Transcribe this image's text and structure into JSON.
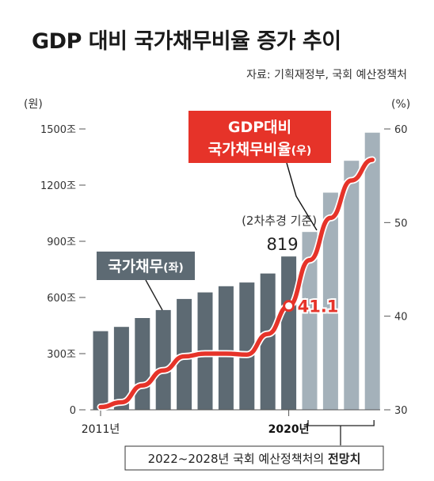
{
  "title": "GDP 대비 국가채무비율 증가 추이",
  "source": "자료: 기획재정부, 국회 예산정책처",
  "colors": {
    "bar_actual": "#5d6a73",
    "bar_forecast": "#a4b1ba",
    "line": "#e63329",
    "debt_label_bg": "#5d6a73",
    "axis": "#555555"
  },
  "chart_data": {
    "type": "bar+line",
    "left_axis": {
      "unit_label": "(원)",
      "ticks": [
        "1500조",
        "1200조",
        "900조",
        "600조",
        "300조",
        "0"
      ],
      "tick_values": [
        1500,
        1200,
        900,
        600,
        300,
        0
      ],
      "ylim": [
        0,
        1500
      ]
    },
    "right_axis": {
      "unit_label": "(%)",
      "ticks": [
        "60",
        "50",
        "40",
        "30"
      ],
      "tick_values": [
        60,
        50,
        40,
        30
      ],
      "ylim": [
        30,
        60
      ]
    },
    "x": [
      2011,
      2012,
      2013,
      2014,
      2015,
      2016,
      2017,
      2018,
      2019,
      2020,
      2021,
      2022,
      2023,
      2024
    ],
    "x_labels_shown": [
      {
        "x": 2011,
        "label": "2011년",
        "bold": false
      },
      {
        "x": 2020,
        "label": "2020년",
        "bold": true
      }
    ],
    "series": [
      {
        "name": "국가채무",
        "name_suffix": "(좌)",
        "kind": "bar",
        "axis": "left",
        "values": [
          420,
          443,
          490,
          533,
          592,
          627,
          660,
          680,
          728,
          819,
          950,
          1160,
          1330,
          1480
        ],
        "forecast_from": 2021
      },
      {
        "name": "GDP대비",
        "name_line2": "국가채무비율",
        "name_suffix": "(우)",
        "kind": "line",
        "axis": "right",
        "points": [
          [
            2011,
            30.3
          ],
          [
            2012,
            30.8
          ],
          [
            2013,
            32.6
          ],
          [
            2014,
            34.2
          ],
          [
            2015,
            35.7
          ],
          [
            2016,
            36.0
          ],
          [
            2017,
            36.0
          ],
          [
            2018,
            35.9
          ],
          [
            2019,
            38.1
          ],
          [
            2020,
            41.1
          ],
          [
            2021,
            46.0
          ],
          [
            2022,
            50.5
          ],
          [
            2023,
            54.5
          ],
          [
            2024,
            56.7
          ]
        ]
      }
    ],
    "annotations": {
      "supplementary_note": "(2차추경 기준)",
      "debt_2020": "819",
      "ratio_2020": "41.1",
      "forecast_note_normal": "2022~2028년 국회 예산정책처의 ",
      "forecast_note_bold": "전망치"
    }
  }
}
